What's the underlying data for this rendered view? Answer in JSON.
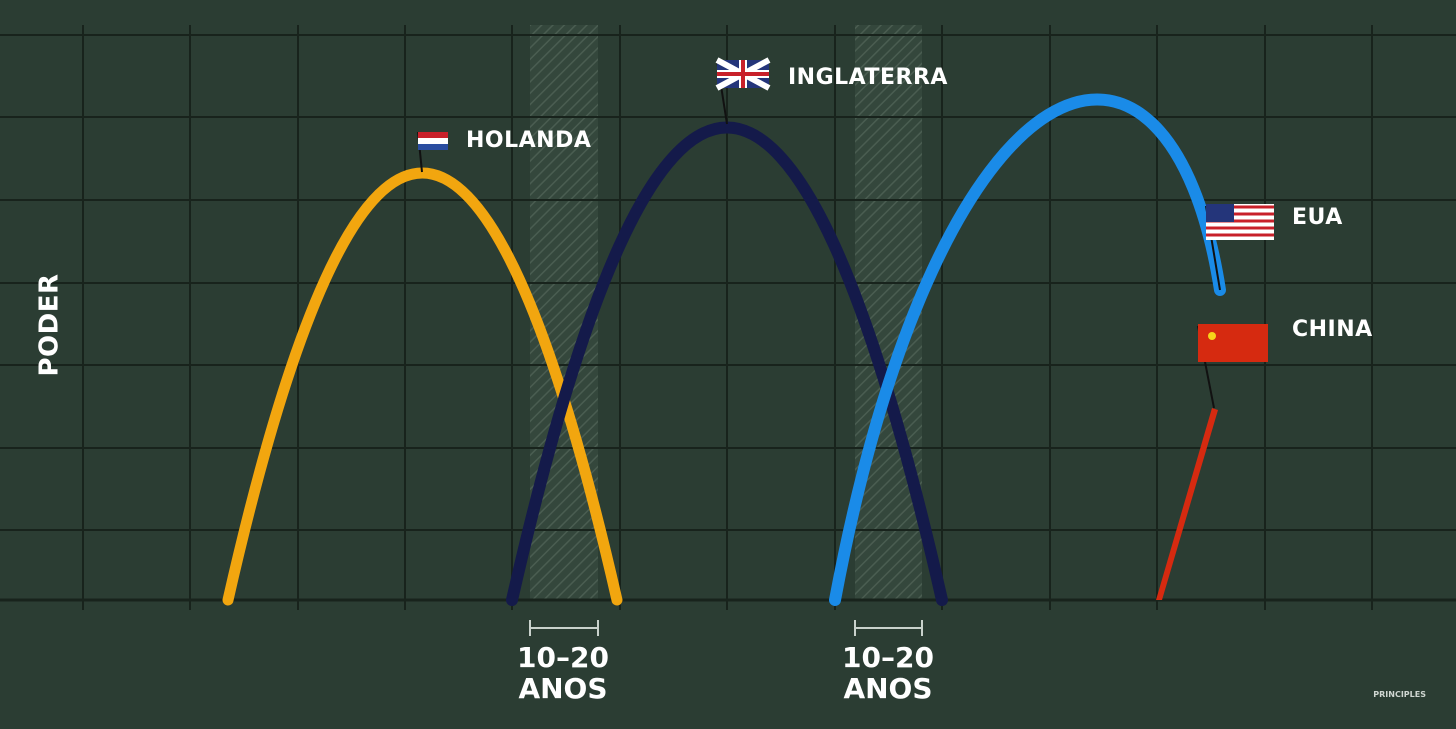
{
  "axis_label": "PODER",
  "countries": [
    {
      "label": "HOLANDA"
    },
    {
      "label": "INGLATERRA"
    },
    {
      "label": "EUA"
    },
    {
      "label": "CHINA"
    }
  ],
  "gaps": [
    {
      "lines": [
        "10–20",
        "ANOS"
      ]
    },
    {
      "lines": [
        "10–20",
        "ANOS"
      ]
    }
  ],
  "watermark": "PRINCIPLES"
}
